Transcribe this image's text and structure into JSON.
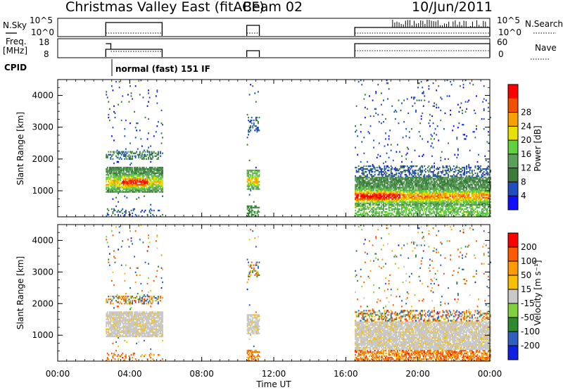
{
  "header": {
    "title": "Christmas Valley East (fitACF)",
    "beam": "Beam 02",
    "date": "10/Jun/2011"
  },
  "top_panels": {
    "nsky_label": "N.Sky",
    "nsky_ticks": [
      "10^5",
      "10^0"
    ],
    "nsearch_label": "N.Search",
    "freq_label_1": "Freq.",
    "freq_label_2": "[MHz]",
    "freq_ticks": [
      "18",
      "8"
    ],
    "nave_label": "Nave",
    "nave_ticks": [
      "60",
      "0"
    ],
    "cpid_label": "CPID",
    "cpid_text": "normal (fast) 151 IF"
  },
  "x_axis": {
    "label": "Time UT",
    "ticks": [
      "00:00",
      "04:00",
      "08:00",
      "12:00",
      "16:00",
      "20:00",
      "00:00"
    ]
  },
  "colors": {
    "power_scale": [
      "#1010ff",
      "#2050c0",
      "#3a7a3a",
      "#5aa05a",
      "#60d040",
      "#e8e000",
      "#f8a000",
      "#f05000",
      "#ff0000"
    ],
    "velocity_scale": [
      "#ff0000",
      "#ff5a00",
      "#ff9a00",
      "#f8c000",
      "#c8c8c8",
      "#80d040",
      "#2e8a2e",
      "#2f5fbf",
      "#1020e0"
    ]
  },
  "chart_data": [
    {
      "type": "heatmap",
      "name": "power",
      "ylabel": "Slant Range [km]",
      "xlabel": "",
      "xlim": [
        0,
        24
      ],
      "ylim": [
        180,
        4500
      ],
      "yticks": [
        1000,
        2000,
        3000,
        4000
      ],
      "colorbar_label": "Power [dB]",
      "colorbar_ticks": [
        "4",
        "8",
        "12",
        "16",
        "20",
        "24",
        "28"
      ],
      "colorbar_range": [
        0,
        30
      ],
      "segments": [
        [
          2.67,
          5.8
        ],
        [
          10.5,
          11.2
        ],
        [
          16.5,
          24
        ]
      ]
    },
    {
      "type": "heatmap",
      "name": "velocity",
      "ylabel": "Slant Range [km]",
      "xlabel": "Time UT",
      "xlim": [
        0,
        24
      ],
      "ylim": [
        180,
        4500
      ],
      "yticks": [
        1000,
        2000,
        3000,
        4000
      ],
      "colorbar_label": "Velocity [m s⁻¹]",
      "colorbar_ticks": [
        "200",
        "100",
        "50",
        "15",
        "-15",
        "-50",
        "-100",
        "-200"
      ],
      "colorbar_range": [
        -250,
        250
      ],
      "segments": [
        [
          2.67,
          5.8
        ],
        [
          10.5,
          11.2
        ],
        [
          16.5,
          24
        ]
      ]
    }
  ]
}
